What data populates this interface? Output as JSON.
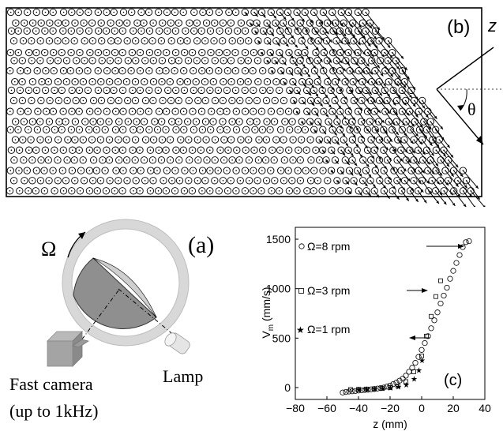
{
  "panel_b": {
    "label": "(b)",
    "axis_z": "z",
    "angle": "θ"
  },
  "panel_a": {
    "label": "(a)",
    "omega": "Ω",
    "camera_label_1": "Fast camera",
    "camera_label_2": "(up to 1kHz)",
    "lamp_label": "Lamp"
  },
  "panel_c": {
    "label": "(c)"
  },
  "chart_data": {
    "type": "scatter",
    "xlabel": "z (mm)",
    "ylabel": "V_m (mm/s)",
    "xlim": [
      -80,
      40
    ],
    "ylim": [
      -120,
      1620
    ],
    "xticks": [
      "−80",
      "−60",
      "−40",
      "−20",
      "0",
      "20",
      "40"
    ],
    "yticks": [
      "0",
      "500",
      "1000",
      "1500"
    ],
    "legend": [
      "Ω=8 rpm",
      "Ω=3 rpm",
      "Ω=1 rpm"
    ],
    "series": [
      {
        "name": "Ω=8 rpm",
        "marker": "circle",
        "x": [
          -50,
          -48,
          -46,
          -44,
          -42,
          -40,
          -38,
          -36,
          -34,
          -32,
          -30,
          -28,
          -26,
          -24,
          -22,
          -20,
          -18,
          -16,
          -14,
          -12,
          -10,
          -8,
          -6,
          -4,
          -2,
          0,
          2,
          4,
          6,
          8,
          10,
          12,
          14,
          16,
          18,
          20,
          22,
          24,
          26,
          28,
          30
        ],
        "values": [
          -50,
          -45,
          -40,
          -38,
          -35,
          -30,
          -28,
          -25,
          -22,
          -18,
          -15,
          -10,
          -5,
          0,
          10,
          20,
          35,
          50,
          70,
          90,
          120,
          160,
          200,
          250,
          310,
          380,
          450,
          520,
          600,
          680,
          760,
          850,
          930,
          1010,
          1100,
          1180,
          1260,
          1340,
          1420,
          1470,
          1480
        ]
      },
      {
        "name": "Ω=3 rpm",
        "marker": "square",
        "x": [
          -45,
          -40,
          -35,
          -30,
          -25,
          -20,
          -15,
          -10,
          -5,
          0,
          3,
          6,
          9,
          12
        ],
        "values": [
          -20,
          -18,
          -15,
          -12,
          -8,
          0,
          15,
          60,
          160,
          320,
          520,
          720,
          920,
          1080
        ]
      },
      {
        "name": "Ω=1 rpm",
        "marker": "star",
        "x": [
          -40,
          -35,
          -30,
          -25,
          -20,
          -15,
          -10,
          -5,
          -2,
          0
        ],
        "values": [
          -15,
          -12,
          -10,
          -5,
          0,
          10,
          30,
          90,
          180,
          280
        ]
      }
    ]
  }
}
